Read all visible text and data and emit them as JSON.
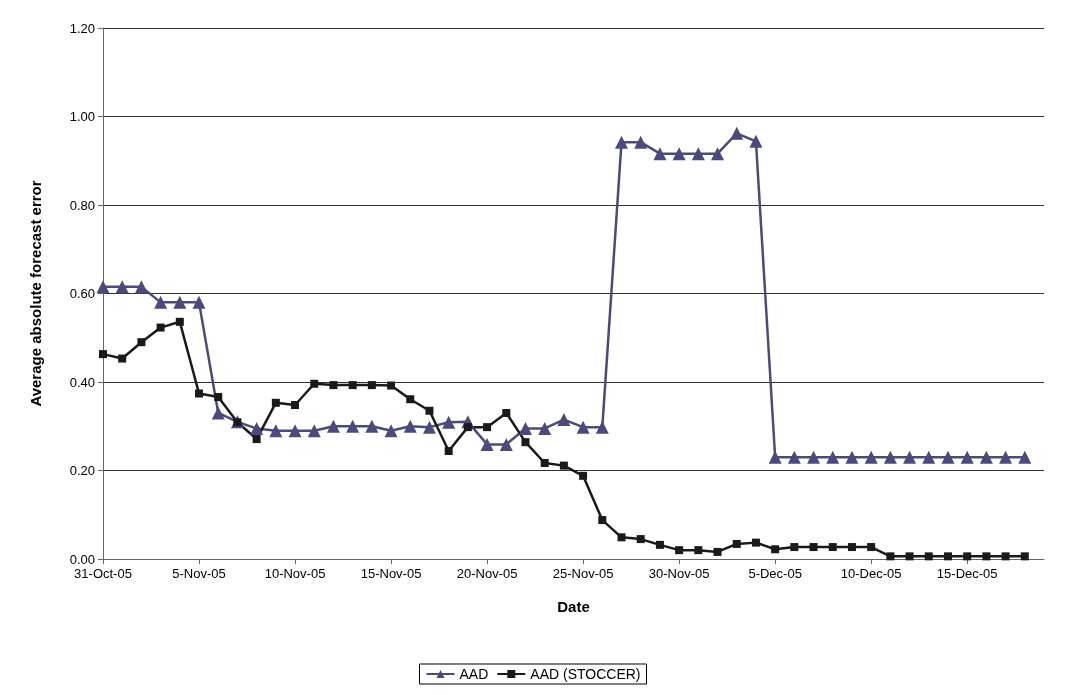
{
  "chart_data": {
    "type": "line",
    "xlabel": "Date",
    "ylabel": "Average absolute forecast error",
    "x": [
      "--10-31",
      "--11-01",
      "--11-02",
      "--11-03",
      "--11-04",
      "--11-05",
      "--11-06",
      "--11-07",
      "--11-08",
      "--11-09",
      "--11-10",
      "--11-11",
      "--11-12",
      "--11-13",
      "--11-14",
      "--11-15",
      "--11-16",
      "--11-17",
      "--11-18",
      "--11-19",
      "--11-20",
      "--11-21",
      "--11-22",
      "--11-23",
      "--11-24",
      "--11-25",
      "--11-26",
      "--11-27",
      "--11-28",
      "--11-29",
      "--11-30",
      "--12-01",
      "--12-02",
      "--12-03",
      "--12-04",
      "--12-05",
      "--12-06",
      "--12-07",
      "--12-08",
      "--12-09",
      "--12-10",
      "--12-11",
      "--12-12",
      "--12-13",
      "--12-14",
      "--12-15",
      "--12-16",
      "--12-17",
      "--12-18"
    ],
    "series": [
      {
        "name": "AAD",
        "color": "#4b4a7d",
        "marker": "triangle",
        "values": [
          0.615,
          0.615,
          0.615,
          0.58,
          0.58,
          0.58,
          0.33,
          0.31,
          0.295,
          0.29,
          0.29,
          0.29,
          0.3,
          0.3,
          0.3,
          0.29,
          0.3,
          0.298,
          0.309,
          0.31,
          0.259,
          0.259,
          0.295,
          0.295,
          0.315,
          0.298,
          0.298,
          0.942,
          0.942,
          0.916,
          0.916,
          0.916,
          0.916,
          0.962,
          0.944,
          0.23,
          0.23,
          0.23,
          0.23,
          0.23,
          0.23,
          0.23,
          0.23,
          0.23,
          0.23,
          0.23,
          0.23,
          0.23,
          0.23
        ]
      },
      {
        "name": "AAD (STOCCER)",
        "color": "#1a1a1a",
        "marker": "square",
        "values": [
          0.463,
          0.453,
          0.49,
          0.523,
          0.536,
          0.374,
          0.366,
          0.309,
          0.271,
          0.353,
          0.348,
          0.396,
          0.393,
          0.393,
          0.393,
          0.392,
          0.361,
          0.335,
          0.244,
          0.298,
          0.298,
          0.33,
          0.264,
          0.217,
          0.211,
          0.188,
          0.088,
          0.049,
          0.045,
          0.032,
          0.02,
          0.02,
          0.016,
          0.034,
          0.037,
          0.022,
          0.027,
          0.027,
          0.027,
          0.027,
          0.027,
          0.006,
          0.006,
          0.006,
          0.006,
          0.006,
          0.006,
          0.006,
          0.006
        ]
      }
    ],
    "xlim": [
      "--10-31",
      "--12-19"
    ],
    "xticks": [
      {
        "value": "--10-31",
        "label": "31-Oct-05"
      },
      {
        "value": "--11-05",
        "label": "5-Nov-05"
      },
      {
        "value": "--11-10",
        "label": "10-Nov-05"
      },
      {
        "value": "--11-15",
        "label": "15-Nov-05"
      },
      {
        "value": "--11-20",
        "label": "20-Nov-05"
      },
      {
        "value": "--11-25",
        "label": "25-Nov-05"
      },
      {
        "value": "--11-30",
        "label": "30-Nov-05"
      },
      {
        "value": "--12-05",
        "label": "5-Dec-05"
      },
      {
        "value": "--12-10",
        "label": "10-Dec-05"
      },
      {
        "value": "--12-15",
        "label": "15-Dec-05"
      }
    ],
    "ylim": [
      0,
      1.2
    ],
    "yticks": [
      {
        "value": 0,
        "label": "0.00"
      },
      {
        "value": 0.2,
        "label": "0.20"
      },
      {
        "value": 0.4,
        "label": "0.40"
      },
      {
        "value": 0.6,
        "label": "0.60"
      },
      {
        "value": 0.8,
        "label": "0.80"
      },
      {
        "value": 1,
        "label": "1.00"
      },
      {
        "value": 1.2,
        "label": "1.20"
      }
    ],
    "grid": "y",
    "legend": "bottom",
    "line_style": "solid"
  }
}
